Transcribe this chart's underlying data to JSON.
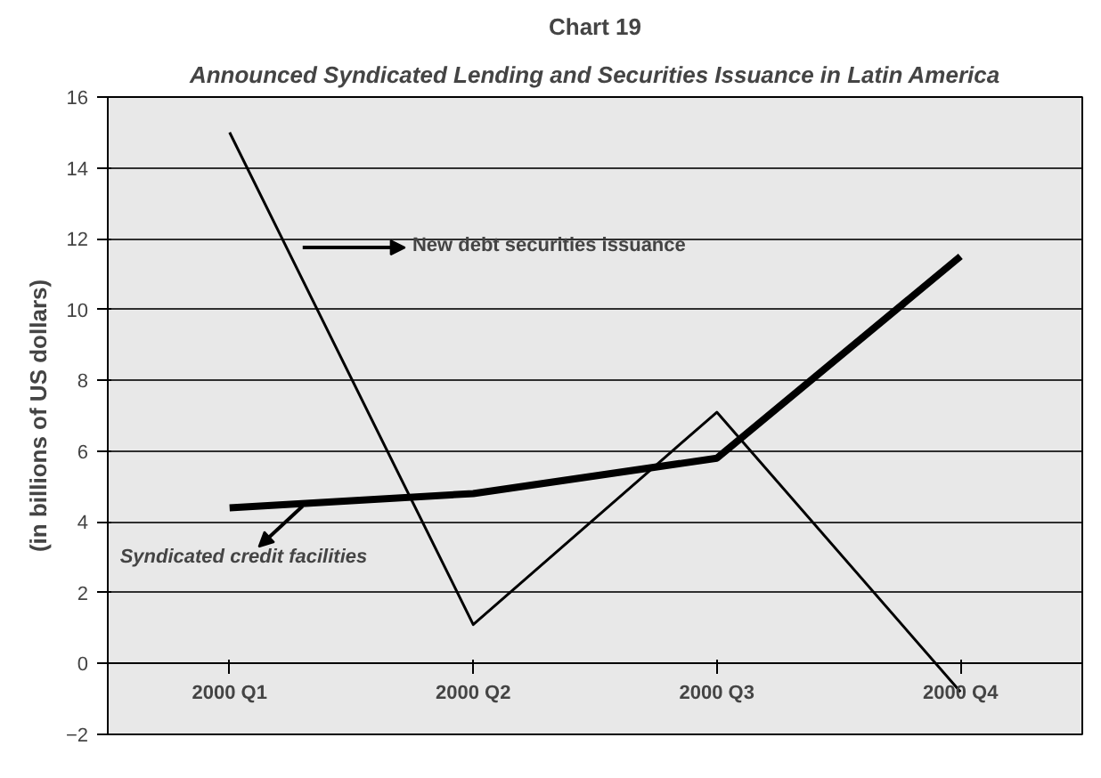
{
  "chart_data": {
    "type": "line",
    "title": "Chart 19",
    "subtitle": "Announced Syndicated Lending and Securities Issuance in Latin America",
    "ylabel": "(in billions of US dollars)",
    "categories": [
      "2000 Q1",
      "2000 Q2",
      "2000 Q3",
      "2000 Q4"
    ],
    "series": [
      {
        "name": "New debt securities issuance",
        "color": "#000000",
        "values": [
          15.0,
          1.1,
          7.1,
          -0.8
        ]
      },
      {
        "name": "Syndicated credit facilities",
        "color": "#000000",
        "values": [
          4.4,
          4.8,
          5.8,
          11.5
        ]
      }
    ],
    "ylim": [
      -2,
      16
    ],
    "yticks": [
      -2,
      0,
      2,
      4,
      6,
      8,
      10,
      12,
      14,
      16
    ],
    "grid": "y"
  }
}
